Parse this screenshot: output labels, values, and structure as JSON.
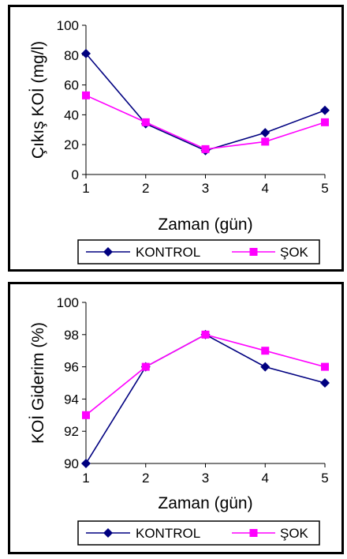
{
  "chart_data": [
    {
      "type": "line",
      "ylabel": "Çıkış KOİ (mg/l)",
      "xlabel": "Zaman (gün)",
      "x": [
        1,
        2,
        3,
        4,
        5
      ],
      "ylim": [
        0,
        100
      ],
      "yticks": [
        0,
        20,
        40,
        60,
        80,
        100
      ],
      "grid": false,
      "legend_position": "bottom",
      "series": [
        {
          "name": "KONTROL",
          "values": [
            81,
            34,
            16,
            28,
            43
          ],
          "color": "#000080",
          "marker": "diamond"
        },
        {
          "name": "ŞOK",
          "values": [
            53,
            35,
            17,
            22,
            35
          ],
          "color": "#ff00ff",
          "marker": "square"
        }
      ]
    },
    {
      "type": "line",
      "ylabel": "KOİ Giderim (%)",
      "xlabel": "Zaman (gün)",
      "x": [
        1,
        2,
        3,
        4,
        5
      ],
      "ylim": [
        90,
        100
      ],
      "yticks": [
        90,
        92,
        94,
        96,
        98,
        100
      ],
      "grid": false,
      "legend_position": "bottom",
      "series": [
        {
          "name": "KONTROL",
          "values": [
            90,
            96,
            98,
            96,
            95
          ],
          "color": "#000080",
          "marker": "diamond"
        },
        {
          "name": "ŞOK",
          "values": [
            93,
            96,
            98,
            97,
            96
          ],
          "color": "#ff00ff",
          "marker": "square"
        }
      ]
    }
  ]
}
